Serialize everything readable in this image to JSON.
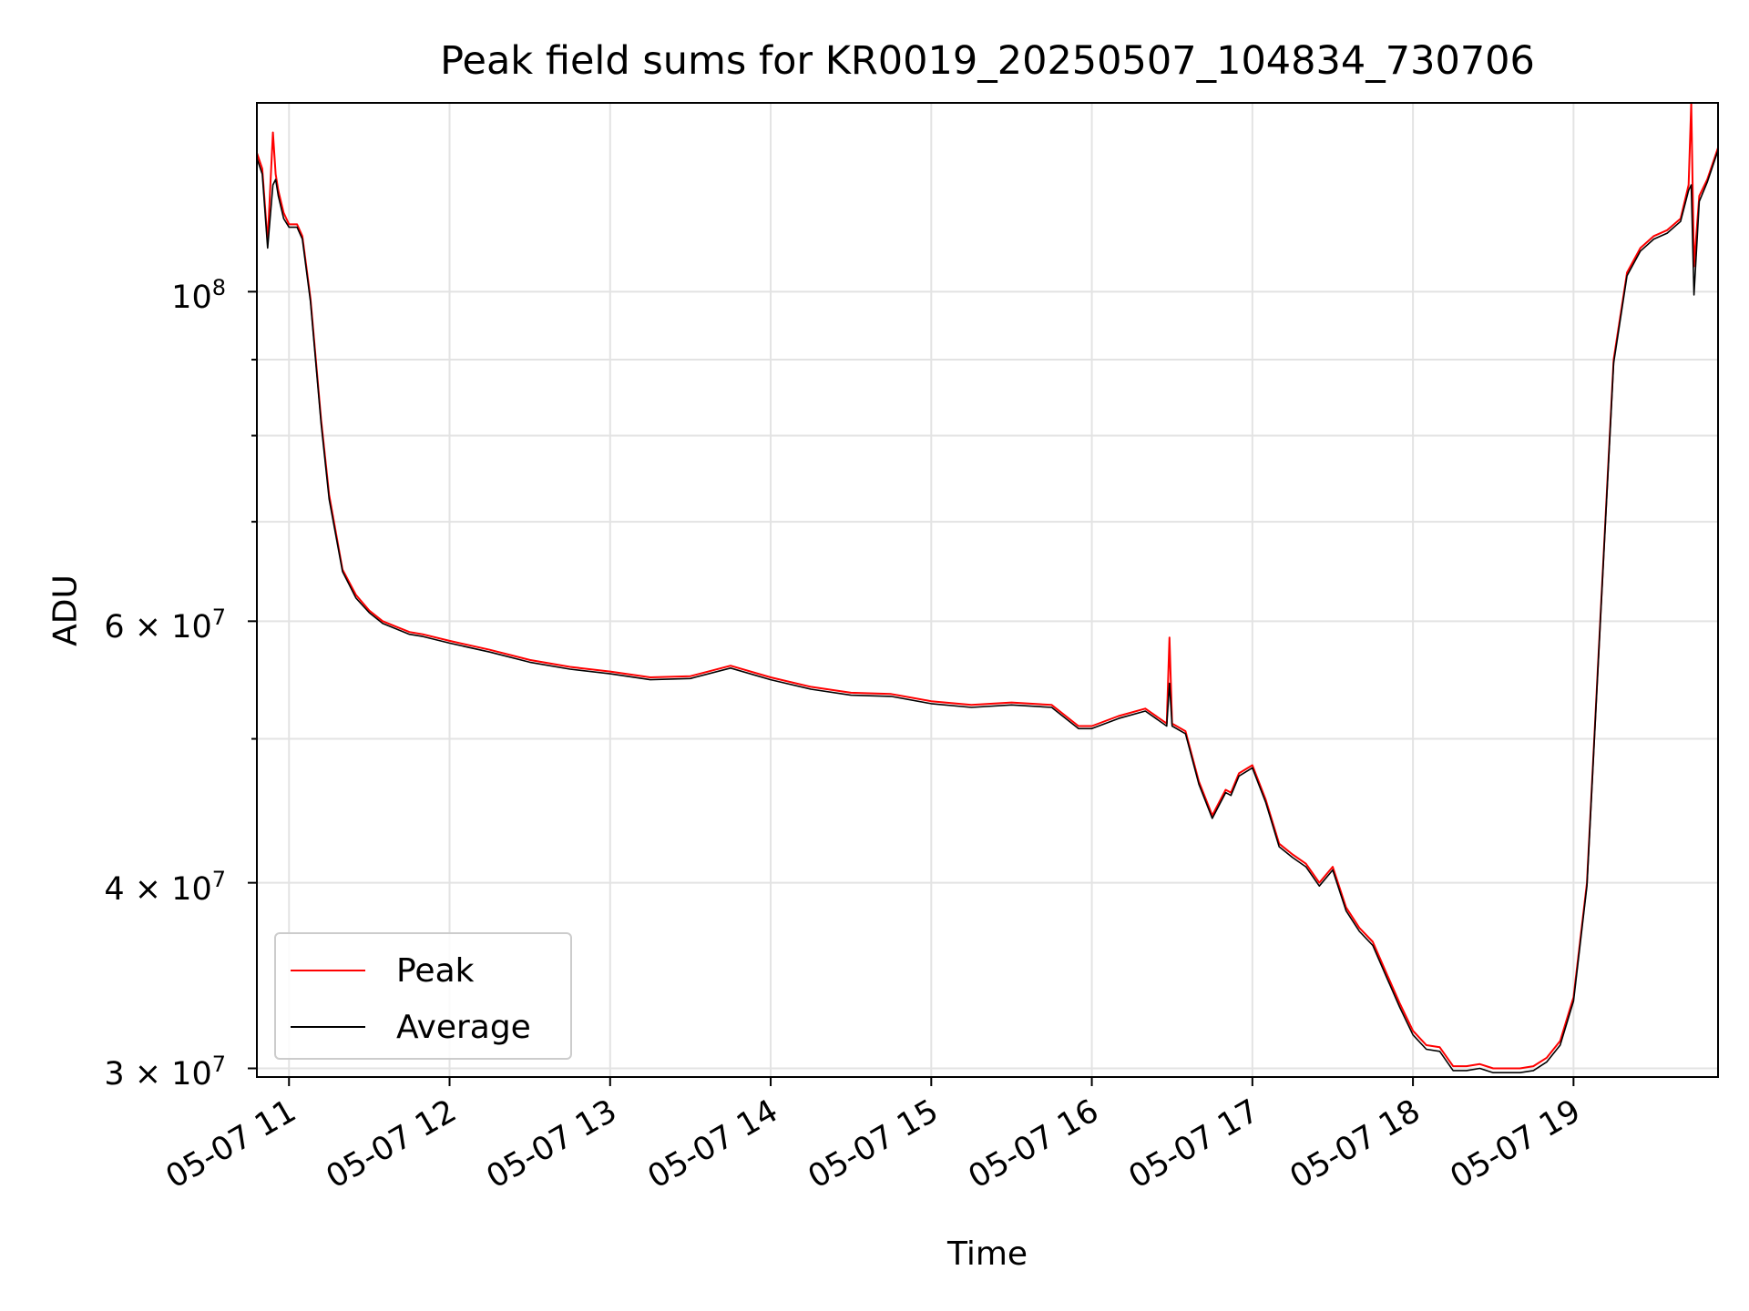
{
  "chart_data": {
    "type": "line",
    "title": "Peak field sums for KR0019_20250507_104834_730706",
    "xlabel": "Time",
    "ylabel": "ADU",
    "x_tick_labels": [
      "05-07 11",
      "05-07 12",
      "05-07 13",
      "05-07 14",
      "05-07 15",
      "05-07 16",
      "05-07 17",
      "05-07 18",
      "05-07 19"
    ],
    "y_tick_labels": [
      {
        "mantissa": "",
        "base": "10",
        "exp": "8",
        "value": 100000000
      },
      {
        "mantissa": "6 × ",
        "base": "10",
        "exp": "7",
        "value": 60000000
      },
      {
        "mantissa": "4 × ",
        "base": "10",
        "exp": "7",
        "value": 40000000
      },
      {
        "mantissa": "3 × ",
        "base": "10",
        "exp": "7",
        "value": 30000000
      }
    ],
    "yscale": "log",
    "xlim": [
      "2025-05-07 10:48",
      "2025-05-07 19:54"
    ],
    "ylim": [
      29600000,
      134000000
    ],
    "grid": true,
    "legend_position": "lower-left",
    "series": [
      {
        "name": "Peak",
        "color": "#ff0000",
        "x": [
          "10:48",
          "10:50",
          "10:52",
          "10:54",
          "10:55",
          "10:56",
          "10:58",
          "11:00",
          "11:03",
          "11:05",
          "11:08",
          "11:12",
          "11:15",
          "11:20",
          "11:25",
          "11:30",
          "11:35",
          "11:40",
          "11:45",
          "11:50",
          "12:00",
          "12:15",
          "12:30",
          "12:45",
          "13:00",
          "13:15",
          "13:30",
          "13:45",
          "14:00",
          "14:15",
          "14:30",
          "14:45",
          "15:00",
          "15:15",
          "15:30",
          "15:45",
          "15:55",
          "16:00",
          "16:10",
          "16:20",
          "16:28",
          "16:29",
          "16:30",
          "16:35",
          "16:40",
          "16:45",
          "16:50",
          "16:52",
          "16:55",
          "17:00",
          "17:05",
          "17:10",
          "17:15",
          "17:20",
          "17:25",
          "17:30",
          "17:35",
          "17:40",
          "17:45",
          "17:50",
          "17:55",
          "18:00",
          "18:05",
          "18:10",
          "18:15",
          "18:20",
          "18:25",
          "18:30",
          "18:40",
          "18:45",
          "18:50",
          "18:55",
          "19:00",
          "19:05",
          "19:10",
          "19:15",
          "19:20",
          "19:25",
          "19:30",
          "19:35",
          "19:40",
          "19:43",
          "19:44",
          "19:45",
          "19:47",
          "19:50",
          "19:54"
        ],
        "y": [
          124000000,
          121000000,
          108000000,
          128000000,
          120000000,
          117000000,
          113000000,
          111000000,
          111000000,
          109000000,
          99000000,
          82000000,
          73000000,
          65000000,
          62500000,
          61000000,
          60000000,
          59500000,
          59000000,
          58800000,
          58200000,
          57400000,
          56500000,
          55900000,
          55500000,
          55000000,
          55100000,
          56000000,
          55000000,
          54200000,
          53700000,
          53600000,
          53000000,
          52700000,
          52900000,
          52700000,
          51000000,
          51000000,
          51800000,
          52400000,
          51200000,
          58500000,
          51200000,
          50600000,
          46800000,
          44400000,
          46200000,
          46000000,
          47400000,
          48000000,
          45500000,
          42500000,
          41800000,
          41200000,
          40000000,
          41000000,
          38500000,
          37300000,
          36500000,
          34800000,
          33200000,
          31800000,
          31100000,
          31000000,
          30100000,
          30100000,
          30200000,
          30000000,
          30000000,
          30100000,
          30500000,
          31300000,
          33500000,
          40000000,
          60000000,
          90000000,
          103000000,
          107000000,
          109000000,
          110000000,
          112000000,
          118000000,
          134000000,
          104000000,
          116000000,
          119000000,
          125000000
        ]
      },
      {
        "name": "Average",
        "color": "#000000",
        "x": [
          "10:48",
          "10:50",
          "10:52",
          "10:54",
          "10:55",
          "10:56",
          "10:58",
          "11:00",
          "11:03",
          "11:05",
          "11:08",
          "11:12",
          "11:15",
          "11:20",
          "11:25",
          "11:30",
          "11:35",
          "11:40",
          "11:45",
          "11:50",
          "12:00",
          "12:15",
          "12:30",
          "12:45",
          "13:00",
          "13:15",
          "13:30",
          "13:45",
          "14:00",
          "14:15",
          "14:30",
          "14:45",
          "15:00",
          "15:15",
          "15:30",
          "15:45",
          "15:55",
          "16:00",
          "16:10",
          "16:20",
          "16:28",
          "16:29",
          "16:30",
          "16:35",
          "16:40",
          "16:45",
          "16:50",
          "16:52",
          "16:55",
          "17:00",
          "17:05",
          "17:10",
          "17:15",
          "17:20",
          "17:25",
          "17:30",
          "17:35",
          "17:40",
          "17:45",
          "17:50",
          "17:55",
          "18:00",
          "18:05",
          "18:10",
          "18:15",
          "18:20",
          "18:25",
          "18:30",
          "18:40",
          "18:45",
          "18:50",
          "18:55",
          "19:00",
          "19:05",
          "19:10",
          "19:15",
          "19:20",
          "19:25",
          "19:30",
          "19:35",
          "19:40",
          "19:43",
          "19:44",
          "19:45",
          "19:47",
          "19:50",
          "19:54"
        ],
        "y": [
          123000000,
          120000000,
          107000000,
          118000000,
          119000000,
          116000000,
          112000000,
          110500000,
          110500000,
          108500000,
          98500000,
          81500000,
          72500000,
          64800000,
          62200000,
          60800000,
          59800000,
          59300000,
          58800000,
          58600000,
          58000000,
          57200000,
          56300000,
          55700000,
          55300000,
          54800000,
          54900000,
          55800000,
          54800000,
          54000000,
          53500000,
          53400000,
          52800000,
          52500000,
          52700000,
          52500000,
          50800000,
          50800000,
          51600000,
          52200000,
          51000000,
          54500000,
          51000000,
          50400000,
          46600000,
          44200000,
          46000000,
          45800000,
          47200000,
          47800000,
          45300000,
          42300000,
          41600000,
          41000000,
          39800000,
          40800000,
          38300000,
          37100000,
          36300000,
          34600000,
          33000000,
          31600000,
          30900000,
          30800000,
          29900000,
          29900000,
          30000000,
          29800000,
          29800000,
          29900000,
          30300000,
          31100000,
          33300000,
          39800000,
          59800000,
          89500000,
          102500000,
          106500000,
          108500000,
          109500000,
          111500000,
          117000000,
          118000000,
          99500000,
          115000000,
          118500000,
          124500000
        ]
      }
    ]
  }
}
